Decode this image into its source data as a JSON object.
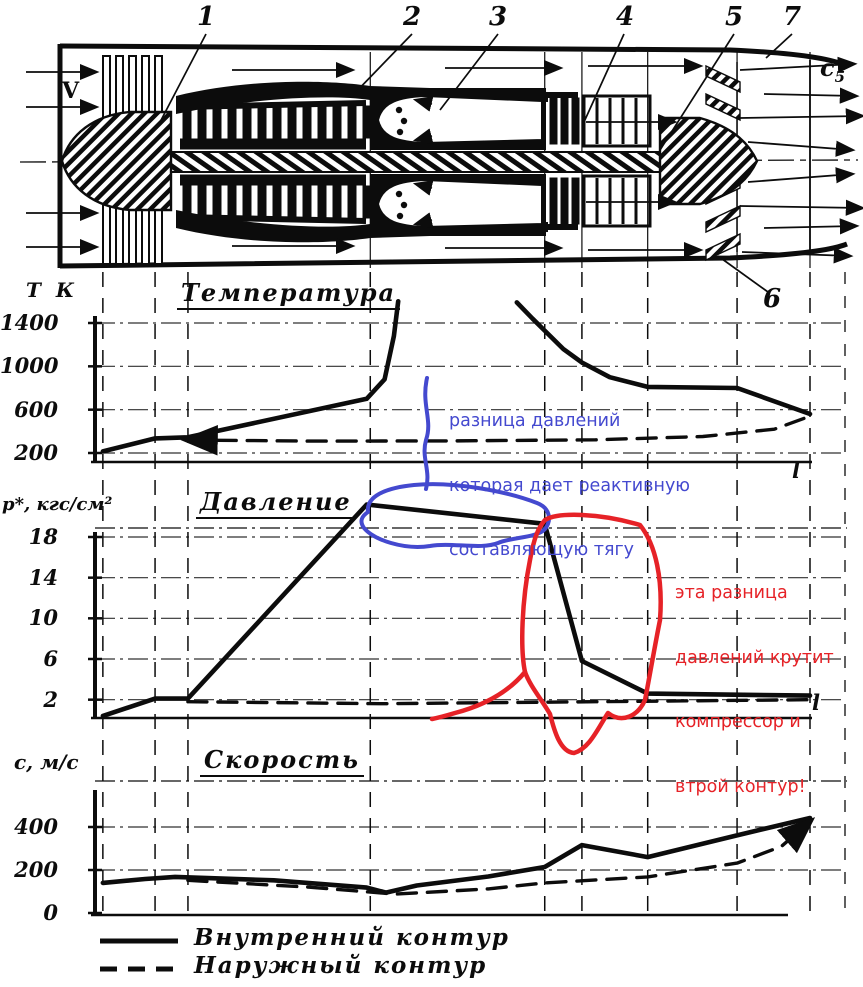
{
  "colors": {
    "ink": "#0c0c0c",
    "blue_annotation": "#4449cf",
    "red_annotation": "#e62227"
  },
  "engine": {
    "inlet_velocity_label": "V",
    "exit_label_base": "c",
    "exit_label_sub": "5",
    "parts": [
      {
        "n": "1"
      },
      {
        "n": "2"
      },
      {
        "n": "3"
      },
      {
        "n": "4"
      },
      {
        "n": "5"
      },
      {
        "n": "7"
      },
      {
        "n": "6"
      }
    ]
  },
  "stations": {
    "fractions": [
      0.011,
      0.084,
      0.13,
      0.385,
      0.629,
      0.681,
      0.773,
      0.898,
      1.0
    ]
  },
  "chart_data": [
    {
      "id": "temperature",
      "type": "line",
      "title": "Температура",
      "ylabel": "Т К",
      "xlabel": "l",
      "yticks": [
        1400,
        1000,
        600,
        200
      ],
      "ylim": [
        200,
        1600
      ],
      "grid": true,
      "series": [
        {
          "name": "Внутренний контур",
          "style": "solid",
          "segments": [
            [
              [
                0.011,
                215
              ],
              [
                0.084,
                335
              ],
              [
                0.13,
                345
              ],
              [
                0.38,
                700
              ],
              [
                0.405,
                880
              ],
              [
                0.418,
                1280
              ],
              [
                0.424,
                1600
              ]
            ],
            [
              [
                0.59,
                1590
              ],
              [
                0.612,
                1440
              ],
              [
                0.629,
                1330
              ],
              [
                0.655,
                1160
              ],
              [
                0.681,
                1035
              ],
              [
                0.72,
                900
              ],
              [
                0.773,
                810
              ],
              [
                0.898,
                800
              ],
              [
                1.0,
                560
              ]
            ]
          ]
        },
        {
          "name": "Наружный контур",
          "style": "dashed",
          "arrow": "start",
          "segments": [
            [
              [
                0.129,
                320
              ],
              [
                0.3,
                310
              ],
              [
                0.5,
                312
              ],
              [
                0.7,
                322
              ],
              [
                0.85,
                352
              ],
              [
                0.95,
                420
              ],
              [
                1.0,
                540
              ]
            ]
          ]
        }
      ]
    },
    {
      "id": "pressure",
      "type": "line",
      "title": "Давление",
      "ylabel": "p*, кгс/см²",
      "xlabel": "l",
      "yticks": [
        18,
        14,
        10,
        6,
        2
      ],
      "ylim": [
        0,
        22
      ],
      "grid": true,
      "series": [
        {
          "name": "Внутренний контур",
          "style": "solid",
          "segments": [
            [
              [
                0.011,
                0.4
              ],
              [
                0.084,
                2.1
              ],
              [
                0.13,
                2.1
              ],
              [
                0.38,
                21.2
              ],
              [
                0.629,
                19.3
              ],
              [
                0.681,
                5.8
              ],
              [
                0.773,
                2.6
              ],
              [
                0.88,
                2.5
              ],
              [
                1.0,
                2.4
              ]
            ]
          ]
        },
        {
          "name": "Наружный контур",
          "style": "dashed",
          "segments": [
            [
              [
                0.13,
                1.8
              ],
              [
                0.4,
                1.6
              ],
              [
                0.7,
                1.8
              ],
              [
                1.0,
                2.0
              ]
            ]
          ]
        }
      ]
    },
    {
      "id": "velocity",
      "type": "line",
      "title": "Скорость",
      "ylabel": "с, м/с",
      "xlabel": "",
      "yticks": [
        400,
        200,
        0
      ],
      "ylim": [
        0,
        500
      ],
      "grid": true,
      "series": [
        {
          "name": "Внутренний контур",
          "style": "solid",
          "segments": [
            [
              [
                0.011,
                140
              ],
              [
                0.07,
                158
              ],
              [
                0.112,
                168
              ],
              [
                0.25,
                152
              ],
              [
                0.38,
                118
              ],
              [
                0.407,
                95
              ],
              [
                0.45,
                128
              ],
              [
                0.55,
                170
              ],
              [
                0.629,
                214
              ],
              [
                0.681,
                316
              ],
              [
                0.773,
                260
              ],
              [
                0.9,
                363
              ],
              [
                1.0,
                442
              ]
            ]
          ]
        },
        {
          "name": "Наружный контур",
          "style": "dashed",
          "arrow": "end",
          "segments": [
            [
              [
                0.13,
                152
              ],
              [
                0.3,
                120
              ],
              [
                0.42,
                88
              ],
              [
                0.55,
                112
              ],
              [
                0.629,
                140
              ],
              [
                0.773,
                168
              ],
              [
                0.898,
                232
              ],
              [
                0.96,
                310
              ],
              [
                1.0,
                425
              ]
            ]
          ]
        }
      ]
    }
  ],
  "annotations": {
    "blue": {
      "color": "#4449cf",
      "lines": [
        "разница давлений",
        "которая дает реактивную",
        "составляющую тягу"
      ]
    },
    "red": {
      "color": "#e62227",
      "lines": [
        "эта разница",
        "давлений крутит",
        "компрессор и",
        "втрой контур!"
      ]
    }
  },
  "legend": {
    "items": [
      {
        "style": "solid",
        "label": "Внутренний контур"
      },
      {
        "style": "dashed",
        "label": "Наружный контур"
      }
    ]
  }
}
